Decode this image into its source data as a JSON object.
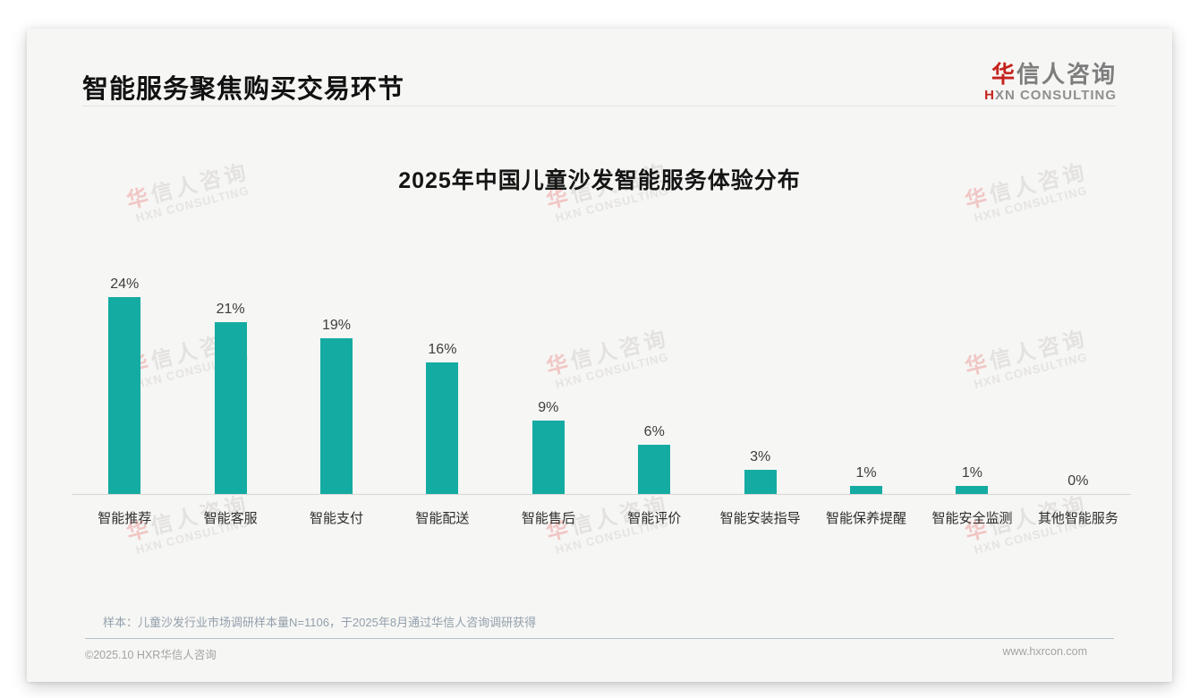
{
  "header": {
    "title": "智能服务聚焦购买交易环节",
    "logo": {
      "cn_first": "华",
      "cn_rest": "信人咨询",
      "en_first": "H",
      "en_rest": "XN CONSULTING"
    }
  },
  "watermark": {
    "cn_first": "华",
    "cn_rest": "信人咨询",
    "en": "HXN CONSULTING"
  },
  "chart_data": {
    "type": "bar",
    "title": "2025年中国儿童沙发智能服务体验分布",
    "categories": [
      "智能推荐",
      "智能客服",
      "智能支付",
      "智能配送",
      "智能售后",
      "智能评价",
      "智能安装指导",
      "智能保养提醒",
      "智能安全监测",
      "其他智能服务"
    ],
    "values": [
      24,
      21,
      19,
      16,
      9,
      6,
      3,
      1,
      1,
      0
    ],
    "unit": "%",
    "xlabel": "",
    "ylabel": "",
    "ylim": [
      0,
      26
    ],
    "grid": false,
    "legend": "none",
    "bar_color": "#14aba2"
  },
  "footnote": {
    "sample": "样本：儿童沙发行业市场调研样本量N=1106，于2025年8月通过华信人咨询调研获得"
  },
  "footer": {
    "copyright": "©2025.10 HXR华信人咨询",
    "website": "www.hxrcon.com"
  }
}
